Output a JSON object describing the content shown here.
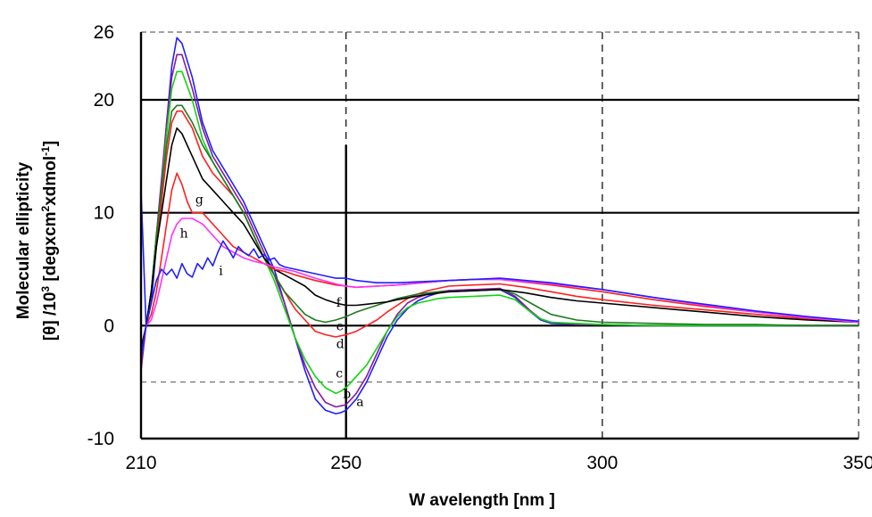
{
  "chart_data": {
    "type": "line",
    "title": "",
    "xlabel": "W avelength  [nm ]",
    "ylabel_line1": "Molecular ellipticity",
    "ylabel_line2_parts": [
      "[θ] /10",
      "3",
      " [degxcm",
      "2",
      "xdmol",
      "-1",
      "]"
    ],
    "xlim": [
      210,
      350
    ],
    "ylim": [
      -10,
      26
    ],
    "x_ticks": [
      210,
      250,
      300,
      350
    ],
    "x_tick_labels": [
      "210",
      "250",
      "300",
      "350"
    ],
    "y_ticks": [
      -10,
      0,
      10,
      20,
      26
    ],
    "y_tick_labels": [
      "-10",
      "0",
      "10",
      "20",
      "26"
    ],
    "grid": true,
    "colors": {
      "blue": "#1f1fff",
      "purple": "#8a1a9e",
      "green": "#12d412",
      "darkgreen": "#1e7a1e",
      "red": "#ff2020",
      "black": "#000000",
      "magenta": "#ff30ff"
    },
    "series": [
      {
        "name": "a",
        "color": "#1f1fff",
        "x": [
          210,
          211,
          212,
          213,
          214,
          215,
          216,
          217,
          218,
          220,
          222,
          224,
          226,
          228,
          230,
          232,
          234,
          236,
          238,
          240,
          242,
          244,
          246,
          248,
          249,
          250,
          251,
          252,
          254,
          256,
          258,
          260,
          262,
          264,
          266,
          268,
          270,
          275,
          280,
          283,
          286,
          288,
          290,
          295,
          300,
          310,
          320,
          330,
          340,
          350
        ],
        "y": [
          12,
          0,
          2,
          7,
          12,
          18,
          23,
          25.5,
          25,
          22,
          18,
          15.5,
          14,
          12.5,
          11,
          9,
          7,
          5,
          2,
          -1,
          -4,
          -6.5,
          -7.5,
          -7.8,
          -7.7,
          -7.5,
          -7,
          -6.5,
          -5,
          -3,
          -1,
          0.5,
          1.5,
          2.2,
          2.6,
          2.9,
          3.1,
          3.2,
          3.2,
          2.5,
          1.2,
          0.5,
          0.2,
          0.1,
          0.1,
          0,
          0,
          0,
          0,
          0
        ]
      },
      {
        "name": "b",
        "color": "#8a1a9e",
        "x": [
          210,
          211,
          212,
          213,
          214,
          215,
          216,
          217,
          218,
          220,
          222,
          224,
          226,
          228,
          230,
          232,
          234,
          236,
          238,
          240,
          242,
          244,
          246,
          248,
          249,
          250,
          251,
          252,
          254,
          256,
          258,
          260,
          262,
          264,
          266,
          268,
          270,
          275,
          280,
          283,
          286,
          288,
          290,
          295,
          300,
          310,
          320,
          330,
          340,
          350
        ],
        "y": [
          -4,
          0,
          3,
          8,
          13,
          18,
          22,
          24,
          24,
          21,
          17.5,
          15,
          13.5,
          12,
          10.5,
          8.5,
          6.5,
          4.5,
          2,
          -1,
          -3.5,
          -5.5,
          -6.8,
          -7.2,
          -7.1,
          -7,
          -6.5,
          -6,
          -4.5,
          -2.5,
          -0.5,
          1,
          2,
          2.5,
          2.8,
          3,
          3.1,
          3.2,
          3.3,
          2.6,
          1.3,
          0.6,
          0.3,
          0.1,
          0.1,
          0,
          0,
          0,
          0,
          0
        ]
      },
      {
        "name": "c",
        "color": "#12d412",
        "x": [
          210,
          211,
          212,
          213,
          214,
          215,
          216,
          217,
          218,
          220,
          222,
          224,
          226,
          228,
          230,
          232,
          234,
          236,
          238,
          240,
          242,
          244,
          246,
          248,
          249,
          250,
          251,
          252,
          254,
          256,
          258,
          260,
          262,
          264,
          266,
          268,
          270,
          275,
          280,
          283,
          286,
          288,
          290,
          295,
          300,
          310,
          320,
          330,
          340,
          350
        ],
        "y": [
          -3,
          0,
          3,
          8,
          12,
          17,
          21,
          22.5,
          22.5,
          20,
          16.5,
          14.5,
          13,
          11.5,
          10,
          8,
          6,
          4,
          1.5,
          -1,
          -3,
          -4.5,
          -5.5,
          -6,
          -5.8,
          -5.5,
          -5,
          -4.5,
          -3.5,
          -2,
          -0.5,
          0.8,
          1.6,
          2,
          2.2,
          2.4,
          2.5,
          2.6,
          2.7,
          2.3,
          1.2,
          0.6,
          0.3,
          0.2,
          0.1,
          0,
          0,
          0,
          0,
          0
        ]
      },
      {
        "name": "d",
        "color": "#ff2020",
        "x": [
          210,
          211,
          212,
          213,
          214,
          215,
          216,
          217,
          218,
          220,
          222,
          224,
          226,
          228,
          230,
          232,
          234,
          236,
          238,
          240,
          242,
          244,
          246,
          248,
          250,
          252,
          254,
          256,
          258,
          260,
          262,
          264,
          266,
          268,
          270,
          275,
          280,
          285,
          290,
          295,
          300,
          310,
          320,
          330,
          340,
          350
        ],
        "y": [
          -3,
          0,
          3,
          7,
          11,
          15,
          18,
          19,
          19,
          17.5,
          15,
          13.5,
          12.5,
          11.5,
          10,
          8,
          6,
          4.5,
          3,
          1.5,
          0.5,
          -0.5,
          -0.8,
          -1,
          -0.8,
          -0.5,
          0,
          0.5,
          1.2,
          1.8,
          2.4,
          2.8,
          3.1,
          3.3,
          3.5,
          3.6,
          3.7,
          3.4,
          3,
          2.6,
          2.3,
          1.8,
          1.4,
          1,
          0.6,
          0.3
        ]
      },
      {
        "name": "e",
        "color": "#1e7a1e",
        "x": [
          210,
          211,
          212,
          213,
          214,
          215,
          216,
          217,
          218,
          220,
          222,
          224,
          226,
          228,
          230,
          232,
          234,
          236,
          238,
          240,
          242,
          244,
          246,
          248,
          250,
          252,
          254,
          256,
          258,
          260,
          262,
          264,
          266,
          268,
          270,
          275,
          280,
          283,
          286,
          290,
          295,
          300,
          310,
          320,
          330,
          340,
          350
        ],
        "y": [
          -3,
          0,
          3,
          8,
          12,
          16,
          19,
          19.5,
          19.5,
          18,
          16,
          14.5,
          13,
          11.5,
          10,
          8,
          6,
          4.5,
          3,
          2,
          1,
          0.5,
          0.3,
          0.5,
          0.8,
          1.2,
          1.5,
          1.8,
          2.1,
          2.4,
          2.6,
          2.8,
          2.9,
          3,
          3,
          3.1,
          3.2,
          2.8,
          2,
          1,
          0.5,
          0.3,
          0.2,
          0.1,
          0.1,
          0,
          0
        ]
      },
      {
        "name": "f",
        "color": "#000000",
        "x": [
          210,
          211,
          212,
          213,
          214,
          215,
          216,
          217,
          218,
          220,
          222,
          224,
          226,
          228,
          230,
          232,
          234,
          236,
          238,
          240,
          242,
          244,
          246,
          248,
          250,
          252,
          254,
          256,
          258,
          260,
          265,
          270,
          275,
          280,
          285,
          290,
          295,
          300,
          310,
          320,
          330,
          340,
          350
        ],
        "y": [
          -2,
          0,
          3,
          7,
          10,
          13,
          16,
          17.5,
          17,
          15,
          13,
          12,
          11,
          10,
          9,
          7.5,
          6,
          5,
          4.5,
          4,
          3.5,
          2.7,
          2.3,
          2,
          1.8,
          1.8,
          1.9,
          2,
          2.1,
          2.3,
          2.7,
          3,
          3.1,
          3.2,
          2.9,
          2.5,
          2.2,
          2,
          1.6,
          1.2,
          0.8,
          0.5,
          0.3
        ]
      },
      {
        "name": "g",
        "color": "#ff2020",
        "x": [
          210,
          211,
          212,
          213,
          214,
          215,
          216,
          217,
          218,
          219,
          220,
          221,
          222,
          223,
          224,
          226,
          228,
          230,
          232,
          234,
          236,
          238,
          240,
          244,
          248,
          250,
          252,
          256,
          260,
          265,
          270,
          275,
          280,
          290,
          300,
          310,
          320,
          330,
          340,
          350
        ],
        "y": [
          -3,
          0,
          1,
          3,
          6,
          9,
          12,
          13.5,
          12.5,
          11,
          10,
          10,
          10,
          9.5,
          9,
          8,
          7,
          6.5,
          6,
          5.5,
          5,
          4.8,
          4.5,
          4,
          3.6,
          3.5,
          3.4,
          3.5,
          3.6,
          3.8,
          4,
          4.1,
          4.1,
          3.6,
          3,
          2.3,
          1.7,
          1.2,
          0.7,
          0.3
        ]
      },
      {
        "name": "h",
        "color": "#ff30ff",
        "x": [
          210,
          211,
          212,
          213,
          214,
          215,
          216,
          217,
          218,
          220,
          222,
          224,
          226,
          228,
          230,
          232,
          234,
          236,
          238,
          240,
          244,
          248,
          250,
          252,
          256,
          260,
          265,
          270,
          275,
          280,
          290,
          300,
          310,
          320,
          330,
          340,
          350
        ],
        "y": [
          -3,
          0,
          0.5,
          2,
          4,
          6,
          8,
          9,
          9.5,
          9.5,
          9,
          8,
          7,
          6.5,
          6,
          5.7,
          5.5,
          5.2,
          5,
          4.8,
          4.2,
          3.7,
          3.5,
          3.4,
          3.5,
          3.6,
          3.8,
          4,
          4.1,
          4.1,
          3.7,
          3.2,
          2.5,
          1.8,
          1.2,
          0.7,
          0.3
        ]
      },
      {
        "name": "i",
        "color": "#1f1fff",
        "x": [
          210,
          211,
          212,
          213,
          214,
          215,
          216,
          217,
          218,
          219,
          220,
          221,
          222,
          223,
          224,
          225,
          226,
          227,
          228,
          229,
          230,
          231,
          232,
          233,
          234,
          235,
          236,
          237,
          238,
          240,
          244,
          248,
          250,
          252,
          256,
          260,
          265,
          270,
          275,
          280,
          290,
          300,
          310,
          320,
          330,
          340,
          350
        ],
        "y": [
          -3,
          0,
          2,
          4,
          5,
          4.5,
          5,
          4.2,
          5.5,
          4.6,
          4.3,
          5.5,
          5,
          6,
          5.3,
          6.5,
          7.5,
          6.8,
          6,
          7,
          6.5,
          6.2,
          6.8,
          6,
          6.3,
          5.8,
          6,
          5.4,
          5.2,
          5,
          4.6,
          4.2,
          4.2,
          4,
          3.8,
          3.8,
          3.9,
          4,
          4.1,
          4.2,
          3.8,
          3.2,
          2.5,
          1.9,
          1.3,
          0.8,
          0.4
        ]
      }
    ],
    "curve_labels": [
      {
        "text": "a",
        "x": 252,
        "y": -7.1
      },
      {
        "text": "b",
        "x": 249.4,
        "y": -6.4
      },
      {
        "text": "c",
        "x": 248,
        "y": -4.6
      },
      {
        "text": "d",
        "x": 248.1,
        "y": -2
      },
      {
        "text": "e",
        "x": 248.1,
        "y": -0.4
      },
      {
        "text": "f",
        "x": 248.1,
        "y": 1.7
      },
      {
        "text": "g",
        "x": 220.6,
        "y": 10.8
      },
      {
        "text": "h",
        "x": 217.6,
        "y": 7.8
      },
      {
        "text": "i",
        "x": 225.2,
        "y": 4.5
      }
    ]
  }
}
